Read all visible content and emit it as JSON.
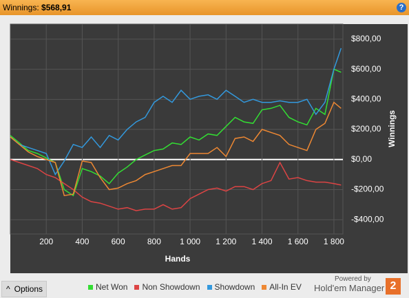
{
  "header": {
    "label": "Winnings:",
    "value": "$568,91",
    "help": "?"
  },
  "footer": {
    "options": "Options",
    "powered": "Powered by",
    "brand": "Hold'em Manager",
    "logo": "2"
  },
  "chart_data": {
    "type": "line",
    "x_label": "Hands",
    "y_label": "Winnings",
    "x": [
      0,
      50,
      100,
      150,
      200,
      250,
      300,
      350,
      400,
      450,
      500,
      550,
      600,
      650,
      700,
      750,
      800,
      850,
      900,
      950,
      1000,
      1050,
      1100,
      1150,
      1200,
      1250,
      1300,
      1350,
      1400,
      1450,
      1500,
      1550,
      1600,
      1650,
      1700,
      1750,
      1800,
      1840
    ],
    "series": [
      {
        "name": "Net Won",
        "color": "#33dd33",
        "values": [
          160,
          110,
          60,
          40,
          10,
          -20,
          -200,
          -240,
          -60,
          -80,
          -110,
          -160,
          -90,
          -50,
          0,
          30,
          60,
          70,
          110,
          100,
          150,
          130,
          170,
          160,
          220,
          280,
          250,
          240,
          330,
          340,
          360,
          280,
          250,
          230,
          340,
          300,
          600,
          580
        ]
      },
      {
        "name": "Non Showdown",
        "color": "#dd4444",
        "values": [
          0,
          -20,
          -40,
          -60,
          -100,
          -120,
          -160,
          -200,
          -250,
          -280,
          -290,
          -310,
          -330,
          -320,
          -340,
          -330,
          -330,
          -300,
          -330,
          -320,
          -260,
          -230,
          -200,
          -190,
          -210,
          -180,
          -180,
          -200,
          -160,
          -140,
          -20,
          -130,
          -120,
          -140,
          -150,
          -150,
          -160,
          -170
        ]
      },
      {
        "name": "Showdown",
        "color": "#3399dd",
        "values": [
          150,
          100,
          80,
          60,
          40,
          -100,
          -10,
          100,
          80,
          150,
          80,
          160,
          130,
          200,
          250,
          280,
          380,
          420,
          380,
          460,
          400,
          420,
          430,
          400,
          460,
          420,
          380,
          400,
          380,
          380,
          390,
          380,
          380,
          400,
          300,
          380,
          600,
          740
        ]
      },
      {
        "name": "All-In EV",
        "color": "#ee8833",
        "values": [
          150,
          100,
          50,
          20,
          0,
          -20,
          -240,
          -230,
          -10,
          -20,
          -120,
          -200,
          -190,
          -160,
          -140,
          -100,
          -80,
          -60,
          -40,
          -40,
          40,
          40,
          40,
          80,
          20,
          140,
          150,
          120,
          200,
          180,
          160,
          100,
          80,
          60,
          200,
          240,
          380,
          340
        ]
      }
    ],
    "xlim": [
      0,
      1850
    ],
    "ylim": [
      -495,
      900
    ],
    "xticks": [
      200,
      400,
      600,
      800,
      {
        "value": 1000,
        "label": "1 000"
      },
      {
        "value": 1200,
        "label": "1 200"
      },
      {
        "value": 1400,
        "label": "1 400"
      },
      {
        "value": 1600,
        "label": "1 600"
      },
      {
        "value": 1800,
        "label": "1 800"
      }
    ],
    "yticks": [
      {
        "value": 800,
        "label": "$800,00"
      },
      {
        "value": 600,
        "label": "$600,00"
      },
      {
        "value": 400,
        "label": "$400,00"
      },
      {
        "value": 200,
        "label": "$200,00"
      },
      {
        "value": 0,
        "label": "$0,00"
      },
      {
        "value": -200,
        "label": "-$200,00"
      },
      {
        "value": -400,
        "label": "-$400,00"
      }
    ],
    "grid": true,
    "legend": "bottom"
  }
}
